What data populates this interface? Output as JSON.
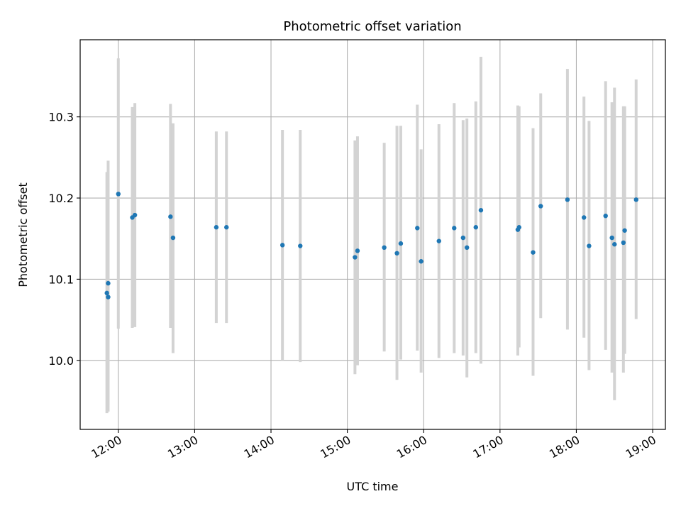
{
  "chart_data": {
    "type": "scatter",
    "title": "Photometric offset variation",
    "xlabel": "UTC time",
    "ylabel": "Photometric offset",
    "x_unit": "time of day (UTC)",
    "xlim": [
      "11:30",
      "19:10"
    ],
    "ylim": [
      9.915,
      10.395
    ],
    "x_ticks": [
      "12:00",
      "13:00",
      "14:00",
      "15:00",
      "16:00",
      "17:00",
      "18:00",
      "19:00"
    ],
    "y_ticks": [
      "10.0",
      "10.1",
      "10.2",
      "10.3"
    ],
    "grid": true,
    "legend": "none",
    "colors": {
      "point": "#1f77b4",
      "errorbar": "#d3d3d3",
      "grid": "#b0b0b0"
    },
    "points": [
      {
        "x": "11:51",
        "y": 10.083,
        "ylo": 9.935,
        "yhi": 10.232
      },
      {
        "x": "11:52",
        "y": 10.078,
        "ylo": 9.937,
        "yhi": 10.218
      },
      {
        "x": "11:52",
        "y": 10.095,
        "ylo": 9.945,
        "yhi": 10.246
      },
      {
        "x": "12:00",
        "y": 10.205,
        "ylo": 10.039,
        "yhi": 10.372
      },
      {
        "x": "12:11",
        "y": 10.176,
        "ylo": 10.04,
        "yhi": 10.312
      },
      {
        "x": "12:13",
        "y": 10.179,
        "ylo": 10.041,
        "yhi": 10.317
      },
      {
        "x": "12:41",
        "y": 10.177,
        "ylo": 10.04,
        "yhi": 10.316
      },
      {
        "x": "12:43",
        "y": 10.151,
        "ylo": 10.009,
        "yhi": 10.292
      },
      {
        "x": "13:17",
        "y": 10.164,
        "ylo": 10.046,
        "yhi": 10.282
      },
      {
        "x": "13:25",
        "y": 10.164,
        "ylo": 10.046,
        "yhi": 10.282
      },
      {
        "x": "14:09",
        "y": 10.142,
        "ylo": 10.0,
        "yhi": 10.284
      },
      {
        "x": "14:23",
        "y": 10.141,
        "ylo": 9.998,
        "yhi": 10.284
      },
      {
        "x": "15:06",
        "y": 10.127,
        "ylo": 9.983,
        "yhi": 10.271
      },
      {
        "x": "15:08",
        "y": 10.135,
        "ylo": 9.994,
        "yhi": 10.276
      },
      {
        "x": "15:29",
        "y": 10.139,
        "ylo": 10.011,
        "yhi": 10.268
      },
      {
        "x": "15:39",
        "y": 10.132,
        "ylo": 9.976,
        "yhi": 10.289
      },
      {
        "x": "15:42",
        "y": 10.144,
        "ylo": 10.001,
        "yhi": 10.289
      },
      {
        "x": "15:55",
        "y": 10.163,
        "ylo": 10.012,
        "yhi": 10.315
      },
      {
        "x": "15:58",
        "y": 10.122,
        "ylo": 9.985,
        "yhi": 10.26
      },
      {
        "x": "16:12",
        "y": 10.147,
        "ylo": 10.003,
        "yhi": 10.291
      },
      {
        "x": "16:24",
        "y": 10.163,
        "ylo": 10.009,
        "yhi": 10.317
      },
      {
        "x": "16:31",
        "y": 10.151,
        "ylo": 10.006,
        "yhi": 10.296
      },
      {
        "x": "16:34",
        "y": 10.139,
        "ylo": 9.979,
        "yhi": 10.298
      },
      {
        "x": "16:41",
        "y": 10.164,
        "ylo": 10.009,
        "yhi": 10.319
      },
      {
        "x": "16:45",
        "y": 10.185,
        "ylo": 9.996,
        "yhi": 10.374
      },
      {
        "x": "17:14",
        "y": 10.161,
        "ylo": 10.006,
        "yhi": 10.314
      },
      {
        "x": "17:15",
        "y": 10.164,
        "ylo": 10.016,
        "yhi": 10.313
      },
      {
        "x": "17:26",
        "y": 10.133,
        "ylo": 9.981,
        "yhi": 10.286
      },
      {
        "x": "17:32",
        "y": 10.19,
        "ylo": 10.052,
        "yhi": 10.329
      },
      {
        "x": "17:53",
        "y": 10.198,
        "ylo": 10.038,
        "yhi": 10.359
      },
      {
        "x": "18:06",
        "y": 10.176,
        "ylo": 10.028,
        "yhi": 10.325
      },
      {
        "x": "18:10",
        "y": 10.141,
        "ylo": 9.988,
        "yhi": 10.295
      },
      {
        "x": "18:23",
        "y": 10.178,
        "ylo": 10.013,
        "yhi": 10.344
      },
      {
        "x": "18:28",
        "y": 10.151,
        "ylo": 9.985,
        "yhi": 10.318
      },
      {
        "x": "18:30",
        "y": 10.143,
        "ylo": 9.951,
        "yhi": 10.336
      },
      {
        "x": "18:37",
        "y": 10.145,
        "ylo": 9.985,
        "yhi": 10.313
      },
      {
        "x": "18:38",
        "y": 10.16,
        "ylo": 10.008,
        "yhi": 10.313
      },
      {
        "x": "18:47",
        "y": 10.198,
        "ylo": 10.051,
        "yhi": 10.346
      }
    ]
  }
}
